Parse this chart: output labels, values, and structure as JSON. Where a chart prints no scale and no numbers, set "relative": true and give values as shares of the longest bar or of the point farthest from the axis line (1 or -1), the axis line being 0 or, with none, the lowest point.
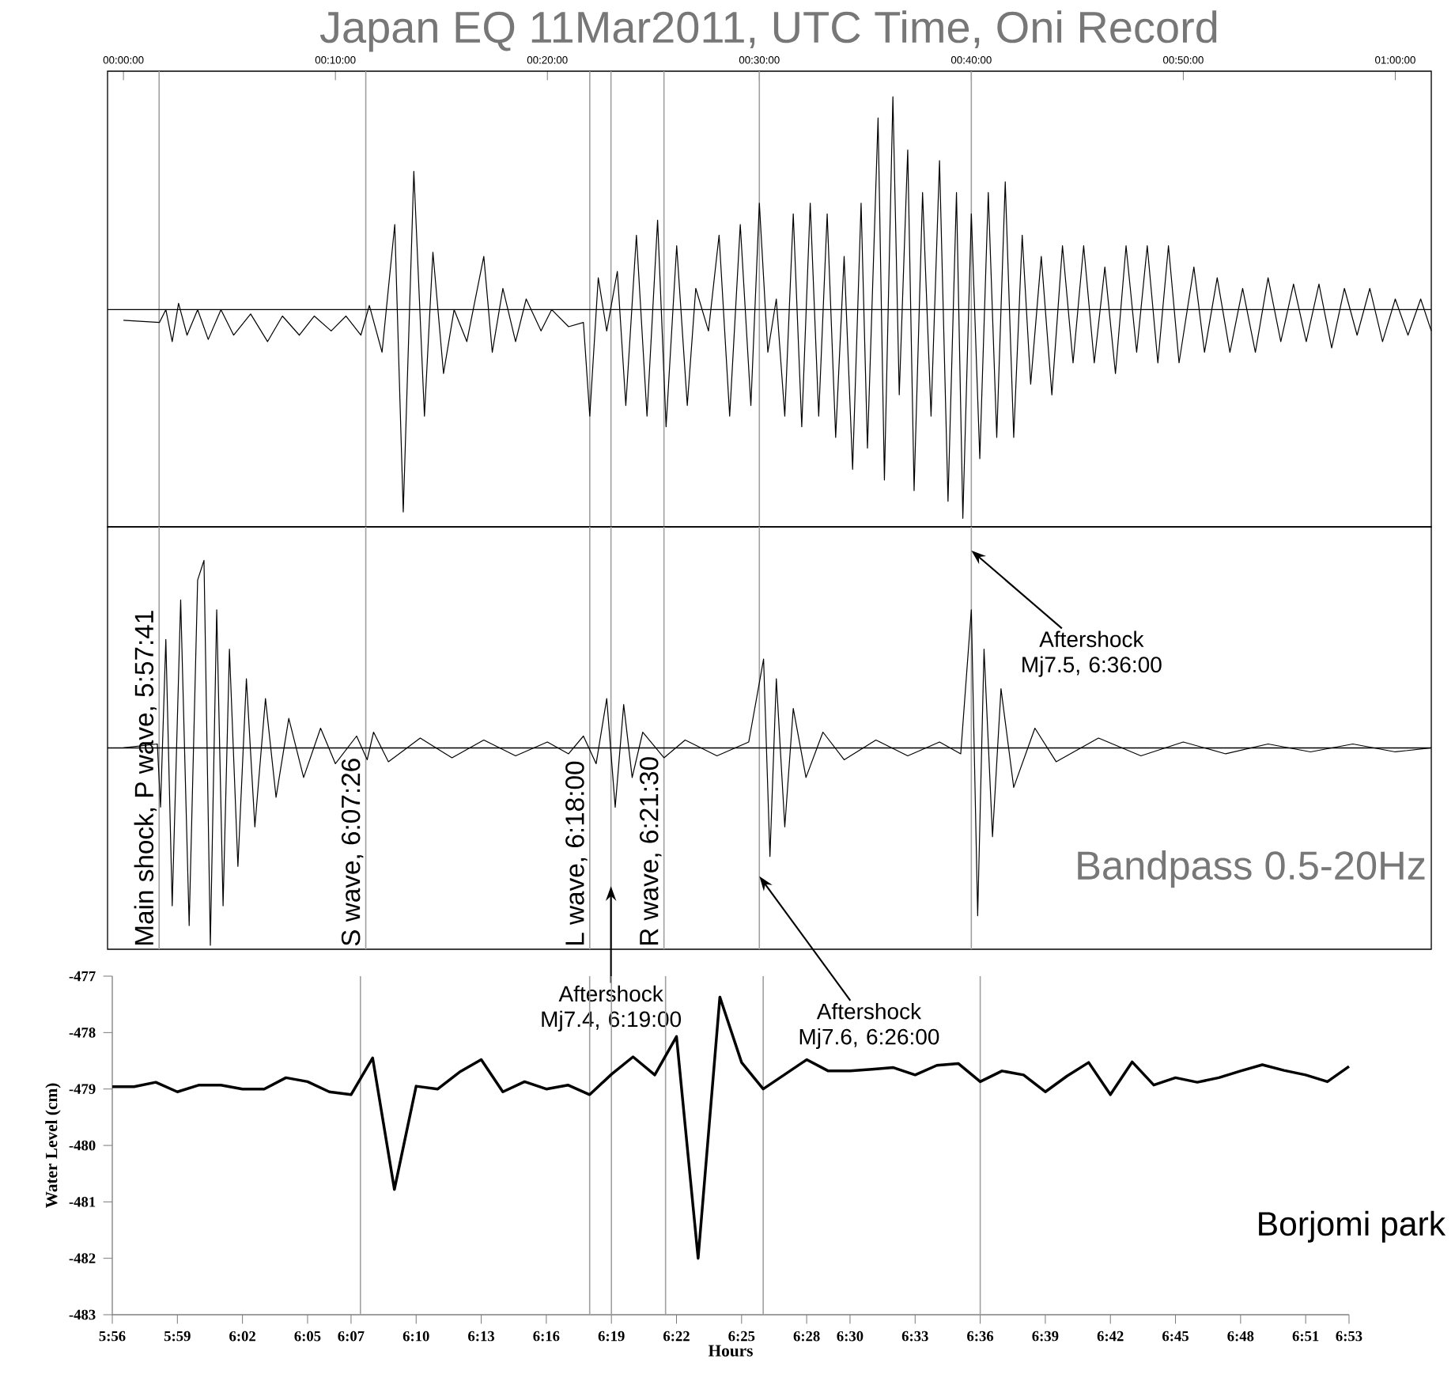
{
  "chart_data": [
    {
      "type": "line",
      "title": "Japan EQ 11Mar2011, UTC Time, Oni Record",
      "relative": true,
      "color": "#000000",
      "tick_labels": "x",
      "x": [
        0,
        1.7,
        2.0,
        2.3,
        2.6,
        3.0,
        3.5,
        4,
        4.6,
        5.2,
        6,
        6.8,
        7.5,
        8.3,
        9,
        9.8,
        10.5,
        11.2,
        11.6,
        12.2,
        12.8,
        13.2,
        13.7,
        14.2,
        14.6,
        15.1,
        15.6,
        16.2,
        17,
        17.4,
        17.9,
        18.5,
        19,
        19.7,
        20.2,
        21,
        21.7,
        22.0,
        22.4,
        22.8,
        23.3,
        23.7,
        24.2,
        24.7,
        25.2,
        25.6,
        26.1,
        26.6,
        27.0,
        27.6,
        28.1,
        28.6,
        29.1,
        29.6,
        30,
        30.4,
        30.8,
        31.2,
        31.6,
        32.0,
        32.4,
        32.8,
        33.2,
        33.6,
        34.0,
        34.4,
        34.8,
        35.1,
        35.6,
        35.9,
        36.3,
        36.6,
        37,
        37.3,
        37.7,
        38.1,
        38.5,
        38.9,
        39.3,
        39.6,
        40,
        40.4,
        40.8,
        41.2,
        41.6,
        42,
        42.4,
        42.8,
        43.3,
        43.8,
        44.3,
        44.8,
        45.3,
        45.8,
        46.3,
        46.8,
        47.3,
        47.8,
        48.3,
        48.8,
        49.3,
        49.8,
        50.5,
        51,
        51.6,
        52.2,
        52.8,
        53.4,
        54,
        54.6,
        55.2,
        55.8,
        56.4,
        57,
        57.6,
        58.2,
        58.8,
        59.4,
        60,
        60.6,
        61.2,
        61.7
      ],
      "values": [
        -0.05,
        -0.06,
        0.0,
        -0.15,
        0.03,
        -0.12,
        0.0,
        -0.14,
        0.0,
        -0.12,
        -0.02,
        -0.15,
        -0.03,
        -0.12,
        -0.03,
        -0.1,
        -0.03,
        -0.12,
        0.02,
        -0.2,
        0.4,
        -0.95,
        0.65,
        -0.5,
        0.27,
        -0.3,
        0.0,
        -0.15,
        0.25,
        -0.2,
        0.1,
        -0.15,
        0.05,
        -0.1,
        0.0,
        -0.08,
        -0.06,
        -0.5,
        0.15,
        -0.1,
        0.18,
        -0.45,
        0.35,
        -0.5,
        0.42,
        -0.55,
        0.3,
        -0.45,
        0.1,
        -0.1,
        0.35,
        -0.5,
        0.4,
        -0.45,
        0.5,
        -0.2,
        0.05,
        -0.5,
        0.45,
        -0.55,
        0.5,
        -0.5,
        0.45,
        -0.6,
        0.25,
        -0.75,
        0.5,
        -0.65,
        0.9,
        -0.8,
        1.0,
        -0.4,
        0.75,
        -0.85,
        0.55,
        -0.5,
        0.7,
        -0.9,
        0.55,
        -0.98,
        0.45,
        -0.7,
        0.55,
        -0.6,
        0.6,
        -0.6,
        0.35,
        -0.35,
        0.25,
        -0.4,
        0.3,
        -0.25,
        0.3,
        -0.25,
        0.2,
        -0.3,
        0.3,
        -0.2,
        0.3,
        -0.25,
        0.3,
        -0.25,
        0.2,
        -0.2,
        0.15,
        -0.2,
        0.1,
        -0.2,
        0.15,
        -0.15,
        0.12,
        -0.15,
        0.12,
        -0.18,
        0.1,
        -0.12,
        0.1,
        -0.15,
        0.05,
        -0.12,
        0.05,
        -0.1
      ],
      "xlim": [
        -0.75,
        61.7
      ],
      "xticks": [
        {
          "value": 0,
          "label": "00:00:00"
        },
        {
          "value": 10,
          "label": "00:10:00"
        },
        {
          "value": 20,
          "label": "00:20:00"
        },
        {
          "value": 30,
          "label": "00:30:00"
        },
        {
          "value": 40,
          "label": "00:40:00"
        },
        {
          "value": 50,
          "label": "00:50:00"
        },
        {
          "value": 60,
          "label": "01:00:00"
        }
      ],
      "ref_lines": [
        {
          "axis": "x",
          "value": 1.683,
          "color": "#a0a0a0"
        },
        {
          "axis": "x",
          "value": 11.433,
          "color": "#a0a0a0"
        },
        {
          "axis": "x",
          "value": 22,
          "color": "#a0a0a0"
        },
        {
          "axis": "x",
          "value": 23,
          "color": "#a0a0a0"
        },
        {
          "axis": "x",
          "value": 25.5,
          "color": "#a0a0a0"
        },
        {
          "axis": "x",
          "value": 30,
          "color": "#a0a0a0"
        },
        {
          "axis": "x",
          "value": 40,
          "color": "#a0a0a0"
        }
      ]
    },
    {
      "type": "line",
      "relative": true,
      "color": "#000000",
      "tick_labels": false,
      "x": [
        0,
        1.6,
        1.75,
        2.0,
        2.3,
        2.7,
        3.1,
        3.5,
        3.8,
        4.1,
        4.4,
        4.7,
        5.0,
        5.4,
        5.8,
        6.2,
        6.7,
        7.2,
        7.8,
        8.5,
        9.3,
        10,
        11,
        11.5,
        11.8,
        12.5,
        14,
        15.5,
        17,
        18.5,
        20,
        21,
        21.7,
        22.3,
        22.8,
        23.2,
        23.6,
        24.0,
        24.5,
        25.5,
        26.5,
        28,
        29.5,
        30.2,
        30.5,
        30.8,
        31.2,
        31.6,
        32.2,
        33,
        34,
        35.5,
        37,
        38.5,
        39.5,
        40.0,
        40.3,
        40.6,
        41.0,
        41.4,
        42,
        43,
        44,
        46,
        48,
        50,
        52,
        54,
        56,
        58,
        60,
        61.7
      ],
      "values": [
        0,
        0.02,
        -0.3,
        0.55,
        -0.8,
        0.75,
        -0.9,
        0.85,
        0.95,
        -1.0,
        0.7,
        -0.8,
        0.5,
        -0.6,
        0.35,
        -0.4,
        0.25,
        -0.25,
        0.15,
        -0.15,
        0.1,
        -0.08,
        0.06,
        -0.06,
        0.08,
        -0.07,
        0.05,
        -0.05,
        0.04,
        -0.04,
        0.03,
        -0.03,
        0.06,
        -0.08,
        0.25,
        -0.3,
        0.22,
        -0.15,
        0.08,
        -0.05,
        0.04,
        -0.04,
        0.03,
        0.45,
        -0.55,
        0.35,
        -0.4,
        0.2,
        -0.15,
        0.08,
        -0.06,
        0.04,
        -0.04,
        0.03,
        -0.03,
        0.7,
        -0.85,
        0.5,
        -0.45,
        0.3,
        -0.2,
        0.1,
        -0.07,
        0.05,
        -0.04,
        0.03,
        -0.03,
        0.02,
        -0.02,
        0.02,
        -0.02,
        0
      ],
      "xlim": [
        -0.75,
        61.7
      ],
      "ref_lines": [
        {
          "axis": "x",
          "value": 1.683,
          "color": "#a0a0a0"
        },
        {
          "axis": "x",
          "value": 11.433,
          "color": "#a0a0a0"
        },
        {
          "axis": "x",
          "value": 22,
          "color": "#a0a0a0"
        },
        {
          "axis": "x",
          "value": 23,
          "color": "#a0a0a0"
        },
        {
          "axis": "x",
          "value": 25.5,
          "color": "#a0a0a0"
        },
        {
          "axis": "x",
          "value": 30,
          "color": "#a0a0a0"
        },
        {
          "axis": "x",
          "value": 40,
          "color": "#a0a0a0"
        }
      ],
      "annotations": [
        {
          "text": "Aftershock Mj7.5, 6:36:00",
          "x": 40,
          "y": 1.0
        },
        {
          "text": "Aftershock Mj7.4, 6:19:00",
          "x": 23,
          "y": -0.7
        },
        {
          "text": "Aftershock Mj7.6, 6:26:00",
          "x": 30,
          "y": -0.65
        },
        "Bandpass 0.5-20Hz",
        "Main shock, P wave, 5:57:41",
        "S wave, 6:07:26",
        "L wave, 6:18:00",
        "R wave, 6:21:30"
      ]
    },
    {
      "type": "line",
      "color": "#000000",
      "xlabel": "Hours",
      "ylabel": "Water Level (cm)",
      "x": [
        5.9333,
        5.95,
        5.9667,
        5.9833,
        6.0,
        6.0167,
        6.0333,
        6.05,
        6.0667,
        6.0833,
        6.1,
        6.1167,
        6.1333,
        6.15,
        6.1667,
        6.1833,
        6.2,
        6.2167,
        6.2333,
        6.25,
        6.2667,
        6.2833,
        6.3,
        6.3167,
        6.3333,
        6.35,
        6.3667,
        6.3833,
        6.4,
        6.4167,
        6.4333,
        6.45,
        6.4667,
        6.4833,
        6.5,
        6.5167,
        6.5333,
        6.55,
        6.5667,
        6.5833,
        6.6,
        6.6167,
        6.6333,
        6.65,
        6.6667,
        6.6833,
        6.7,
        6.7167,
        6.7333,
        6.75,
        6.7667,
        6.7833,
        6.8,
        6.8167,
        6.8333,
        6.85,
        6.8667,
        6.8833
      ],
      "values": [
        -478.96,
        -478.96,
        -478.88,
        -479.05,
        -478.93,
        -478.93,
        -479.0,
        -479.0,
        -478.8,
        -478.87,
        -479.05,
        -479.1,
        -478.45,
        -480.78,
        -478.95,
        -479.0,
        -478.7,
        -478.48,
        -479.05,
        -478.87,
        -479.0,
        -478.93,
        -479.1,
        -478.74,
        -478.43,
        -478.75,
        -478.07,
        -482.0,
        -477.37,
        -478.53,
        -479.0,
        -478.74,
        -478.48,
        -478.68,
        -478.68,
        -478.65,
        -478.62,
        -478.75,
        -478.58,
        -478.55,
        -478.87,
        -478.68,
        -478.75,
        -479.05,
        -478.77,
        -478.53,
        -479.1,
        -478.52,
        -478.93,
        -478.8,
        -478.88,
        -478.8,
        -478.68,
        -478.57,
        -478.67,
        -478.75,
        -478.87,
        -478.6
      ],
      "xlim": [
        5.9333,
        6.8833
      ],
      "ylim": [
        -483,
        -477
      ],
      "yticks": [
        -477,
        -478,
        -479,
        -480,
        -481,
        -482,
        -483
      ],
      "xticks": [
        {
          "value": 5.9333,
          "label": "5:56"
        },
        {
          "value": 5.9833,
          "label": "5:59"
        },
        {
          "value": 6.0333,
          "label": "6:02"
        },
        {
          "value": 6.0833,
          "label": "6:05"
        },
        {
          "value": 6.1167,
          "label": "6:07"
        },
        {
          "value": 6.1667,
          "label": "6:10"
        },
        {
          "value": 6.2167,
          "label": "6:13"
        },
        {
          "value": 6.2667,
          "label": "6:16"
        },
        {
          "value": 6.3167,
          "label": "6:19"
        },
        {
          "value": 6.3667,
          "label": "6:22"
        },
        {
          "value": 6.4167,
          "label": "6:25"
        },
        {
          "value": 6.4667,
          "label": "6:28"
        },
        {
          "value": 6.5,
          "label": "6:30"
        },
        {
          "value": 6.55,
          "label": "6:33"
        },
        {
          "value": 6.6,
          "label": "6:36"
        },
        {
          "value": 6.65,
          "label": "6:39"
        },
        {
          "value": 6.7,
          "label": "6:42"
        },
        {
          "value": 6.75,
          "label": "6:45"
        },
        {
          "value": 6.8,
          "label": "6:48"
        },
        {
          "value": 6.85,
          "label": "6:51"
        },
        {
          "value": 6.8833,
          "label": "6:53"
        }
      ],
      "ref_lines": [
        {
          "axis": "x",
          "value": 6.1239,
          "color": "#a0a0a0"
        },
        {
          "axis": "x",
          "value": 6.3,
          "color": "#a0a0a0"
        },
        {
          "axis": "x",
          "value": 6.3167,
          "color": "#a0a0a0"
        },
        {
          "axis": "x",
          "value": 6.3583,
          "color": "#a0a0a0"
        },
        {
          "axis": "x",
          "value": 6.4333,
          "color": "#a0a0a0"
        },
        {
          "axis": "x",
          "value": 6.6,
          "color": "#a0a0a0"
        }
      ],
      "annotations": [
        "Borjomi park"
      ]
    }
  ]
}
